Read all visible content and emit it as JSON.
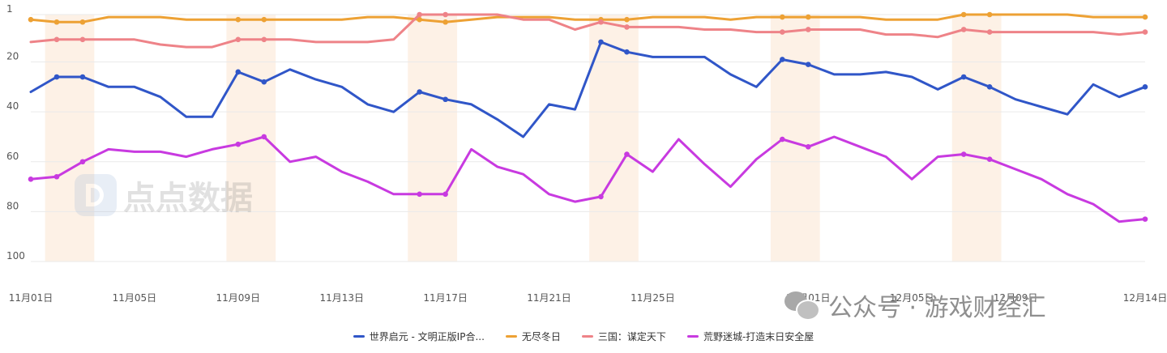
{
  "watermarks": {
    "logo_text": "点点数据",
    "wechat_text": "公众号 · 游戏财经汇"
  },
  "chart_data": {
    "type": "line",
    "y_inverted": true,
    "ylim": [
      1,
      100
    ],
    "yticks": [
      1,
      20,
      40,
      60,
      80,
      100
    ],
    "grid": true,
    "legend_position": "bottom",
    "x_tick_labels": [
      "11月01日",
      "11月05日",
      "11月09日",
      "11月13日",
      "11月17日",
      "11月21日",
      "11月25日",
      "12月01日",
      "12月05日",
      "12月09日",
      "12月14日"
    ],
    "x_tick_indices": [
      0,
      4,
      8,
      12,
      16,
      20,
      24,
      30,
      34,
      38,
      43
    ],
    "highlight_bands": [
      [
        1,
        2
      ],
      [
        8,
        9
      ],
      [
        15,
        16
      ],
      [
        22,
        23
      ],
      [
        29,
        30
      ],
      [
        36,
        37
      ]
    ],
    "series": [
      {
        "name": "世界启元 - 文明正版IP合...",
        "color": "#3056c8",
        "values": [
          32,
          26,
          26,
          30,
          30,
          34,
          42,
          42,
          24,
          28,
          23,
          27,
          30,
          37,
          40,
          32,
          35,
          37,
          43,
          50,
          37,
          39,
          12,
          16,
          18,
          18,
          18,
          25,
          30,
          19,
          21,
          25,
          25,
          24,
          26,
          31,
          26,
          30,
          35,
          38,
          41,
          29,
          34,
          30
        ],
        "markers": [
          1,
          2,
          8,
          9,
          15,
          16,
          22,
          23,
          29,
          30,
          36,
          37,
          43
        ]
      },
      {
        "name": "无尽冬日",
        "color": "#eda134",
        "values": [
          3,
          4,
          4,
          2,
          2,
          2,
          3,
          3,
          3,
          3,
          3,
          3,
          3,
          2,
          2,
          3,
          4,
          3,
          2,
          2,
          2,
          3,
          3,
          3,
          2,
          2,
          2,
          3,
          2,
          2,
          2,
          2,
          2,
          3,
          3,
          3,
          1,
          1,
          1,
          1,
          1,
          2,
          2,
          2
        ],
        "markers": [
          0,
          1,
          2,
          8,
          9,
          15,
          16,
          22,
          23,
          29,
          30,
          36,
          37,
          43
        ]
      },
      {
        "name": "三国：谋定天下",
        "color": "#ee8388",
        "values": [
          12,
          11,
          11,
          11,
          11,
          13,
          14,
          14,
          11,
          11,
          11,
          12,
          12,
          12,
          11,
          1,
          1,
          1,
          1,
          3,
          3,
          7,
          4,
          6,
          6,
          6,
          7,
          7,
          8,
          8,
          7,
          7,
          7,
          9,
          9,
          10,
          7,
          8,
          8,
          8,
          8,
          8,
          9,
          8
        ],
        "markers": [
          1,
          2,
          8,
          9,
          15,
          16,
          22,
          23,
          29,
          30,
          36,
          37,
          43
        ]
      },
      {
        "name": "荒野迷城-打造末日安全屋",
        "color": "#c83ae0",
        "values": [
          67,
          66,
          60,
          55,
          56,
          56,
          58,
          55,
          53,
          50,
          60,
          58,
          64,
          68,
          73,
          73,
          73,
          55,
          62,
          65,
          73,
          76,
          74,
          57,
          64,
          51,
          61,
          70,
          59,
          51,
          54,
          50,
          54,
          58,
          67,
          58,
          57,
          59,
          63,
          67,
          73,
          77,
          84,
          83
        ],
        "markers": [
          0,
          1,
          2,
          8,
          9,
          15,
          16,
          22,
          23,
          29,
          30,
          36,
          37,
          43
        ]
      }
    ]
  }
}
